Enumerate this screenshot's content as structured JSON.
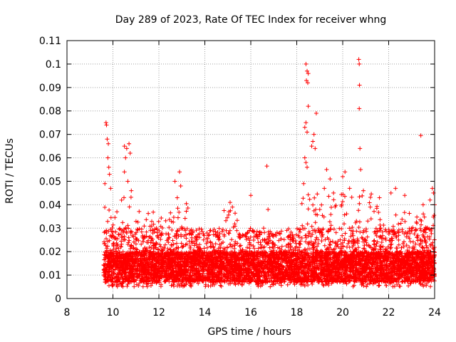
{
  "chart_data": {
    "type": "scatter",
    "title": "Day 289 of 2023, Rate Of TEC Index for receiver whng",
    "xlabel": "GPS time / hours",
    "ylabel": "ROTI / TECUs",
    "xlim": [
      8,
      24
    ],
    "ylim": [
      0,
      0.11
    ],
    "grid": true,
    "marker": "+",
    "color": "#ff0000",
    "x_ticks": [
      8,
      10,
      12,
      14,
      16,
      18,
      20,
      22,
      24
    ],
    "x_tick_labels": [
      "8",
      "10",
      "12",
      "14",
      "16",
      "18",
      "20",
      "22",
      "24"
    ],
    "y_ticks": [
      0,
      0.01,
      0.02,
      0.03,
      0.04,
      0.05,
      0.06,
      0.07,
      0.08,
      0.09,
      0.1,
      0.11
    ],
    "y_tick_labels": [
      "0",
      "0.01",
      "0.02",
      "0.03",
      "0.04",
      "0.05",
      "0.06",
      "0.07",
      "0.08",
      "0.09",
      "0.1",
      "0.11"
    ],
    "data_x_range": [
      9.6,
      24.0
    ],
    "outlier_points": [
      {
        "x": 9.7,
        "y": 0.075
      },
      {
        "x": 9.72,
        "y": 0.074
      },
      {
        "x": 9.75,
        "y": 0.068
      },
      {
        "x": 9.8,
        "y": 0.066
      },
      {
        "x": 9.78,
        "y": 0.06
      },
      {
        "x": 9.82,
        "y": 0.056
      },
      {
        "x": 9.85,
        "y": 0.053
      },
      {
        "x": 9.9,
        "y": 0.047
      },
      {
        "x": 9.65,
        "y": 0.049
      },
      {
        "x": 10.5,
        "y": 0.065
      },
      {
        "x": 10.6,
        "y": 0.064
      },
      {
        "x": 10.7,
        "y": 0.066
      },
      {
        "x": 10.75,
        "y": 0.062
      },
      {
        "x": 10.55,
        "y": 0.06
      },
      {
        "x": 10.5,
        "y": 0.054
      },
      {
        "x": 10.65,
        "y": 0.05
      },
      {
        "x": 10.8,
        "y": 0.046
      },
      {
        "x": 12.7,
        "y": 0.05
      },
      {
        "x": 12.9,
        "y": 0.054
      },
      {
        "x": 12.95,
        "y": 0.048
      },
      {
        "x": 12.8,
        "y": 0.043
      },
      {
        "x": 15.1,
        "y": 0.041
      },
      {
        "x": 15.2,
        "y": 0.039
      },
      {
        "x": 15.05,
        "y": 0.037
      },
      {
        "x": 16.0,
        "y": 0.044
      },
      {
        "x": 16.7,
        "y": 0.0565
      },
      {
        "x": 16.75,
        "y": 0.038
      },
      {
        "x": 18.4,
        "y": 0.1
      },
      {
        "x": 18.45,
        "y": 0.097
      },
      {
        "x": 18.5,
        "y": 0.096
      },
      {
        "x": 18.42,
        "y": 0.093
      },
      {
        "x": 18.48,
        "y": 0.092
      },
      {
        "x": 18.5,
        "y": 0.082
      },
      {
        "x": 18.85,
        "y": 0.079
      },
      {
        "x": 18.4,
        "y": 0.075
      },
      {
        "x": 18.35,
        "y": 0.073
      },
      {
        "x": 18.45,
        "y": 0.071
      },
      {
        "x": 18.75,
        "y": 0.07
      },
      {
        "x": 18.7,
        "y": 0.067
      },
      {
        "x": 18.65,
        "y": 0.065
      },
      {
        "x": 18.8,
        "y": 0.064
      },
      {
        "x": 18.35,
        "y": 0.06
      },
      {
        "x": 18.4,
        "y": 0.058
      },
      {
        "x": 18.45,
        "y": 0.056
      },
      {
        "x": 18.3,
        "y": 0.049
      },
      {
        "x": 19.3,
        "y": 0.055
      },
      {
        "x": 19.45,
        "y": 0.051
      },
      {
        "x": 19.2,
        "y": 0.047
      },
      {
        "x": 20.1,
        "y": 0.054
      },
      {
        "x": 20.0,
        "y": 0.052
      },
      {
        "x": 20.3,
        "y": 0.047
      },
      {
        "x": 19.6,
        "y": 0.045
      },
      {
        "x": 20.7,
        "y": 0.102
      },
      {
        "x": 20.72,
        "y": 0.1
      },
      {
        "x": 20.73,
        "y": 0.091
      },
      {
        "x": 20.72,
        "y": 0.081
      },
      {
        "x": 20.75,
        "y": 0.064
      },
      {
        "x": 20.78,
        "y": 0.055
      },
      {
        "x": 20.9,
        "y": 0.046
      },
      {
        "x": 21.6,
        "y": 0.043
      },
      {
        "x": 22.3,
        "y": 0.047
      },
      {
        "x": 22.1,
        "y": 0.045
      },
      {
        "x": 22.7,
        "y": 0.044
      },
      {
        "x": 23.4,
        "y": 0.0695
      },
      {
        "x": 23.9,
        "y": 0.047
      },
      {
        "x": 23.95,
        "y": 0.045
      },
      {
        "x": 23.8,
        "y": 0.042
      },
      {
        "x": 24.0,
        "y": 0.04
      },
      {
        "x": 23.5,
        "y": 0.04
      },
      {
        "x": 21.2,
        "y": 0.039
      },
      {
        "x": 19.0,
        "y": 0.038
      }
    ],
    "dense_band": {
      "x_start": 9.6,
      "x_end": 24.0,
      "typical_low": 0.005,
      "typical_high": 0.03
    },
    "elevated_segments": [
      {
        "x_start": 9.6,
        "x_end": 10.2,
        "peak": 0.04
      },
      {
        "x_start": 10.3,
        "x_end": 11.2,
        "peak": 0.045
      },
      {
        "x_start": 11.2,
        "x_end": 12.5,
        "peak": 0.037
      },
      {
        "x_start": 12.5,
        "x_end": 13.3,
        "peak": 0.042
      },
      {
        "x_start": 14.8,
        "x_end": 15.5,
        "peak": 0.04
      },
      {
        "x_start": 18.1,
        "x_end": 19.0,
        "peak": 0.045
      },
      {
        "x_start": 19.0,
        "x_end": 21.5,
        "peak": 0.045
      },
      {
        "x_start": 21.5,
        "x_end": 24.0,
        "peak": 0.037
      }
    ]
  }
}
